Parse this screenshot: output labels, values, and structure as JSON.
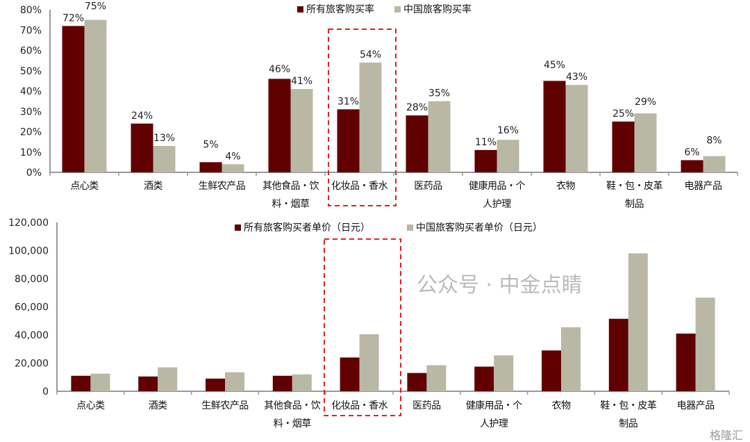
{
  "colors": {
    "series1": "#600000",
    "series2": "#b8b8a5",
    "highlight": "#e02020",
    "axis": "#999999"
  },
  "chart_data": [
    {
      "type": "bar",
      "title": "",
      "xlabel": "",
      "ylabel": "",
      "ylim": [
        0,
        80
      ],
      "yticks": [
        "0%",
        "10%",
        "20%",
        "30%",
        "40%",
        "50%",
        "60%",
        "70%",
        "80%"
      ],
      "categories": [
        [
          "点心类"
        ],
        [
          "酒类"
        ],
        [
          "生鲜农产品"
        ],
        [
          "其他食品・饮",
          "料・烟草"
        ],
        [
          "化妆品・香水"
        ],
        [
          "医药品"
        ],
        [
          "健康用品・个",
          "人护理"
        ],
        [
          "衣物"
        ],
        [
          "鞋・包・皮革",
          "制品"
        ],
        [
          "电器产品"
        ]
      ],
      "series": [
        {
          "name": "所有旅客购买率",
          "values": [
            72,
            24,
            5,
            46,
            31,
            28,
            11,
            45,
            25,
            6
          ],
          "labels": [
            "72%",
            "24%",
            "5%",
            "46%",
            "31%",
            "28%",
            "11%",
            "45%",
            "25%",
            "6%"
          ]
        },
        {
          "name": "中国旅客购买率",
          "values": [
            75,
            13,
            4,
            41,
            54,
            35,
            16,
            43,
            29,
            8
          ],
          "labels": [
            "75%",
            "13%",
            "4%",
            "41%",
            "54%",
            "35%",
            "16%",
            "43%",
            "29%",
            "8%"
          ]
        }
      ],
      "legend": "top-center",
      "highlight_category": 4
    },
    {
      "type": "bar",
      "title": "",
      "xlabel": "",
      "ylabel": "",
      "ylim": [
        0,
        120000
      ],
      "yticks": [
        "0",
        "20,000",
        "40,000",
        "60,000",
        "80,000",
        "100,000",
        "120,000"
      ],
      "categories": [
        [
          "点心类"
        ],
        [
          "酒类"
        ],
        [
          "生鲜农产品"
        ],
        [
          "其他食品・饮",
          "料・烟草"
        ],
        [
          "化妆品・香水"
        ],
        [
          "医药品"
        ],
        [
          "健康用品・个",
          "人护理"
        ],
        [
          "衣物"
        ],
        [
          "鞋・包・皮革",
          "制品"
        ],
        [
          "电器产品"
        ]
      ],
      "series": [
        {
          "name": "所有旅客购买者单价（日元）",
          "values": [
            11000,
            10500,
            9000,
            11000,
            24000,
            13000,
            17500,
            29000,
            51500,
            41000
          ]
        },
        {
          "name": "中国旅客购买者单价（日元）",
          "values": [
            12500,
            17000,
            13500,
            12000,
            40500,
            18500,
            25500,
            45500,
            98000,
            66500
          ]
        }
      ],
      "legend": "top-center",
      "highlight_category": 4
    }
  ],
  "watermark": {
    "text": "公众号 · 中金点睛",
    "brand": "格隆汇"
  }
}
